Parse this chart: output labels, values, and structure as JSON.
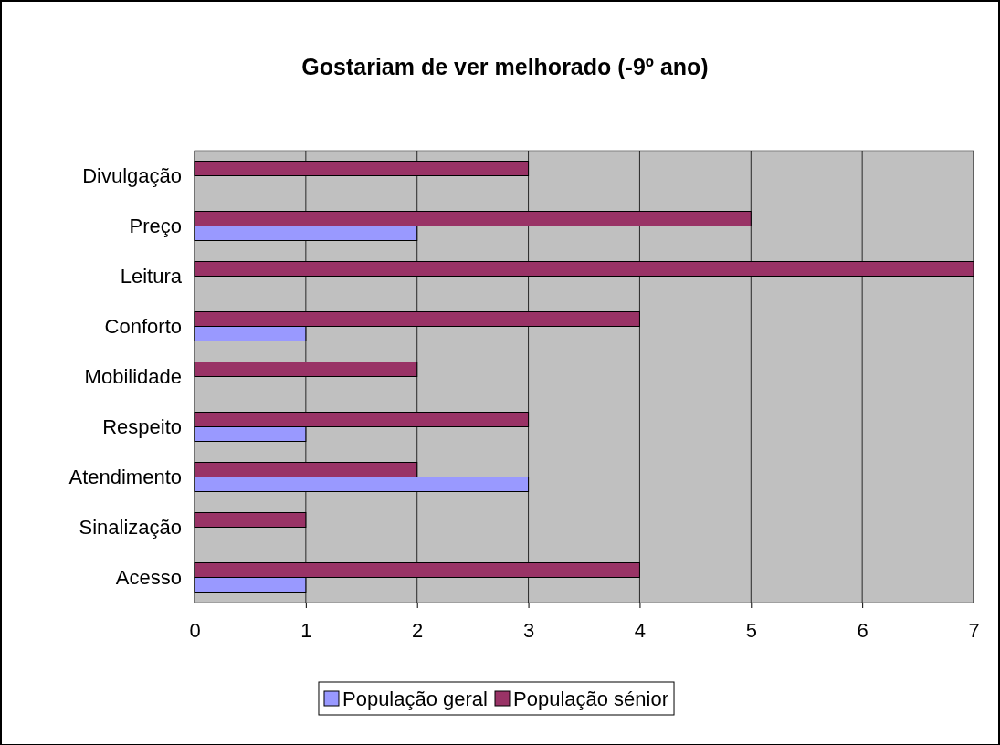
{
  "chart_data": {
    "type": "bar",
    "orientation": "horizontal",
    "title": "Gostariam de ver melhorado (-9º ano)",
    "categories": [
      "Divulgação",
      "Preço",
      "Leitura",
      "Conforto",
      "Mobilidade",
      "Respeito",
      "Atendimento",
      "Sinalização",
      "Acesso"
    ],
    "series": [
      {
        "name": "População geral",
        "color": "#9999ff",
        "values": [
          0,
          2,
          0,
          1,
          0,
          1,
          3,
          0,
          1
        ]
      },
      {
        "name": "População sénior",
        "color": "#993366",
        "values": [
          3,
          5,
          7,
          4,
          2,
          3,
          2,
          1,
          4
        ]
      }
    ],
    "xlim": [
      0,
      7
    ],
    "xticks": [
      0,
      1,
      2,
      3,
      4,
      5,
      6,
      7
    ],
    "grid": "x",
    "legend": "bottom"
  }
}
